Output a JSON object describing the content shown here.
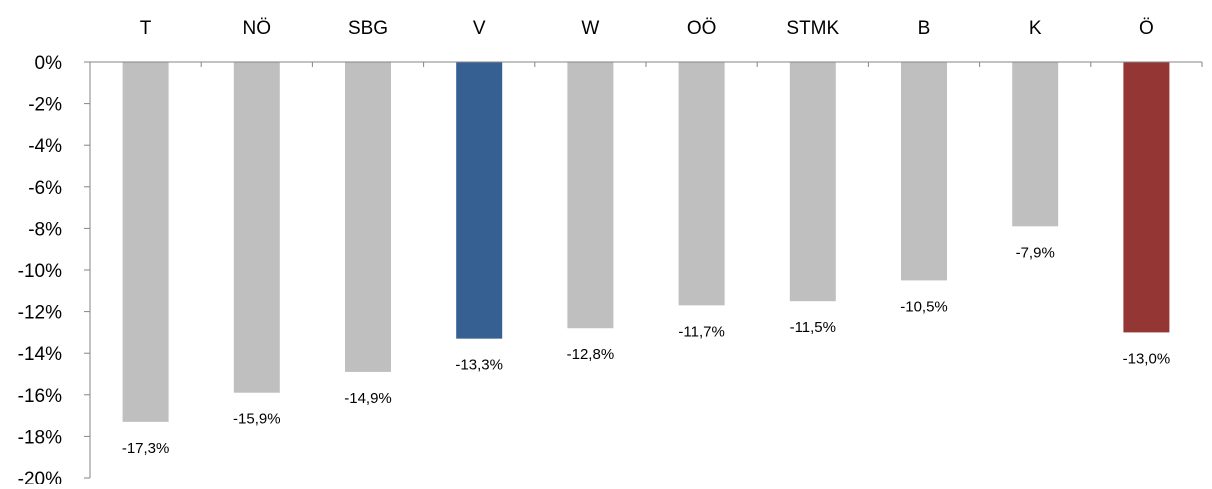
{
  "chart_data": {
    "type": "bar",
    "categories": [
      "T",
      "NÖ",
      "SBG",
      "V",
      "W",
      "OÖ",
      "STMK",
      "B",
      "K",
      "Ö"
    ],
    "values": [
      -17.3,
      -15.9,
      -14.9,
      -13.3,
      -12.8,
      -11.7,
      -11.5,
      -10.5,
      -7.9,
      -13.0
    ],
    "data_labels": [
      "-17,3%",
      "-15,9%",
      "-14,9%",
      "-13,3%",
      "-12,8%",
      "-11,7%",
      "-11,5%",
      "-10,5%",
      "-7,9%",
      "-13,0%"
    ],
    "bar_colors": [
      "#bfbfbf",
      "#bfbfbf",
      "#bfbfbf",
      "#366092",
      "#bfbfbf",
      "#bfbfbf",
      "#bfbfbf",
      "#bfbfbf",
      "#bfbfbf",
      "#943634"
    ],
    "y_ticks": [
      0,
      -2,
      -4,
      -6,
      -8,
      -10,
      -12,
      -14,
      -16,
      -18,
      -20
    ],
    "y_tick_labels": [
      "0%",
      "-2%",
      "-4%",
      "-6%",
      "-8%",
      "-10%",
      "-12%",
      "-14%",
      "-16%",
      "-18%",
      "-20%"
    ],
    "ylim": [
      -20,
      0
    ],
    "category_axis_position": "top",
    "grid": false,
    "axis_color": "#868686",
    "title": "",
    "xlabel": "",
    "ylabel": ""
  }
}
